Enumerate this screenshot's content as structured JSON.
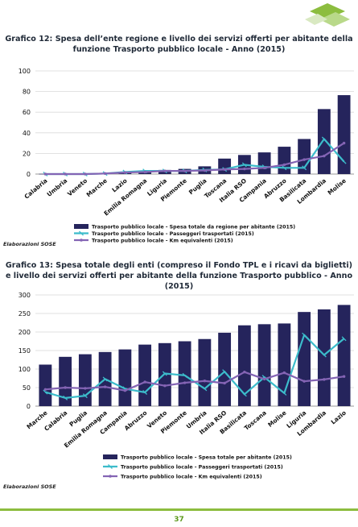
{
  "page": {
    "number": "37"
  },
  "colors": {
    "bar": "#25245c",
    "line_passeggeri": "#3cbccb",
    "line_km": "#8464b4",
    "footer": "#8cbd3f"
  },
  "chart_data": [
    {
      "type": "bar",
      "title": "Grafico 12: Spesa dell’ente regione e livello dei servizi offerti per abitante della funzione Trasporto pubblico locale - Anno (2015)",
      "source": "Elaborazioni SOSE",
      "categories": [
        "Calabria",
        "Umbria",
        "Veneto",
        "Marche",
        "Lazio",
        "Emilia Romagna",
        "Liguria",
        "Piemonte",
        "Puglia",
        "Toscana",
        "Italia RSO",
        "Campania",
        "Abruzzo",
        "Basilicata",
        "Lombardia",
        "Molise"
      ],
      "ylim": [
        0,
        100
      ],
      "yticks": [
        0,
        20,
        40,
        60,
        80,
        100
      ],
      "grid": true,
      "legend_position": "bottom",
      "series": [
        {
          "name": "Trasporto pubblico locale - Spesa totale da regione per abitante (2015)",
          "kind": "bar",
          "values": [
            0.2,
            0.2,
            0.3,
            0.5,
            2,
            3.5,
            4,
            5,
            7.5,
            15,
            18.5,
            21,
            26.5,
            34,
            63,
            76.5
          ]
        },
        {
          "name": "Trasporto pubblico locale - Passeggeri trasportati  (2015)",
          "kind": "line",
          "values": [
            0,
            0,
            0,
            0.5,
            2,
            3,
            3,
            3,
            4,
            4.5,
            9,
            7,
            6,
            6,
            34,
            12
          ]
        },
        {
          "name": "Trasporto pubblico locale - Km equivalenti (2015)",
          "kind": "line",
          "values": [
            0,
            0,
            0,
            0.5,
            1.5,
            2,
            3,
            3,
            3.5,
            4.5,
            5,
            6,
            9,
            14,
            17.5,
            30
          ]
        }
      ]
    },
    {
      "type": "bar",
      "title": "Grafico 13: Spesa totale degli enti (compreso il Fondo TPL e i ricavi da biglietti) e livello dei servizi offerti per abitante della funzione Trasporto pubblico - Anno (2015)",
      "source": "Elaborazioni SOSE",
      "categories": [
        "Marche",
        "Calabria",
        "Puglia",
        "Emilia Romagna",
        "Campania",
        "Abruzzo",
        "Veneto",
        "Piemonte",
        "Umbria",
        "Italia RSO",
        "Basilicata",
        "Toscana",
        "Molise",
        "Liguria",
        "Lombardia",
        "Lazio"
      ],
      "ylim": [
        0,
        300
      ],
      "yticks": [
        0,
        50,
        100,
        150,
        200,
        250,
        300
      ],
      "grid": true,
      "legend_position": "bottom",
      "series": [
        {
          "name": "Trasporto pubblico locale - Spesa totale per abitante (2015)",
          "kind": "bar",
          "values": [
            112,
            133,
            140,
            146,
            153,
            166,
            170,
            175,
            181,
            198,
            218,
            221,
            223,
            254,
            261,
            273
          ]
        },
        {
          "name": "Trasporto pubblico locale - Passeggeri trasportati  (2015)",
          "kind": "line",
          "values": [
            38,
            22,
            28,
            73,
            47,
            37,
            88,
            83,
            47,
            93,
            32,
            78,
            35,
            192,
            138,
            182
          ]
        },
        {
          "name": "Trasporto pubblico locale - Km equivalenti (2015)",
          "kind": "line",
          "values": [
            45,
            50,
            48,
            52,
            42,
            65,
            55,
            63,
            68,
            62,
            92,
            73,
            90,
            67,
            72,
            80
          ]
        }
      ]
    }
  ]
}
